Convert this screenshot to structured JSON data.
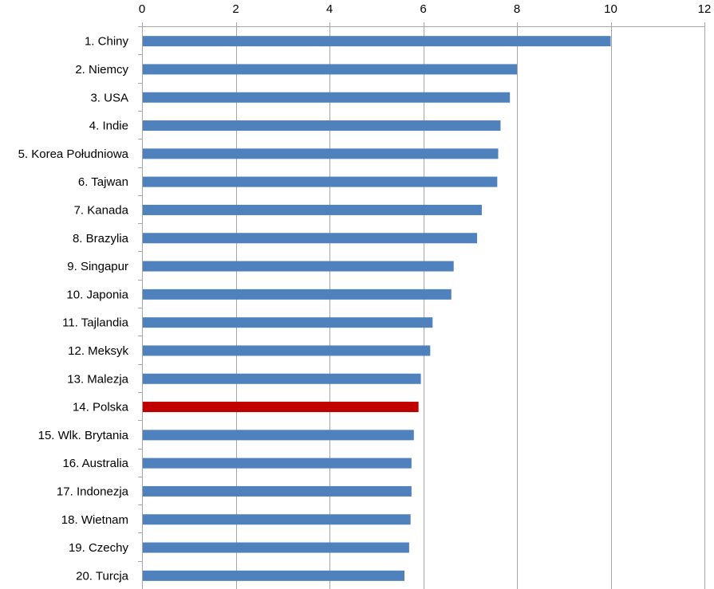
{
  "chart_data": {
    "type": "bar",
    "orientation": "horizontal",
    "categories": [
      "1. Chiny",
      "2. Niemcy",
      "3. USA",
      "4. Indie",
      "5. Korea Południowa",
      "6. Tajwan",
      "7. Kanada",
      "8. Brazylia",
      "9. Singapur",
      "10. Japonia",
      "11. Tajlandia",
      "12. Meksyk",
      "13. Malezja",
      "14. Polska",
      "15. Wlk. Brytania",
      "16. Australia",
      "17. Indonezja",
      "18. Wietnam",
      "19. Czechy",
      "20. Turcja"
    ],
    "values": [
      10.0,
      8.0,
      7.85,
      7.65,
      7.6,
      7.58,
      7.25,
      7.15,
      6.65,
      6.6,
      6.2,
      6.15,
      5.95,
      5.9,
      5.8,
      5.75,
      5.75,
      5.73,
      5.7,
      5.6
    ],
    "highlight_index": 13,
    "colors": {
      "default": "#4F81BD",
      "highlight": "#C00000",
      "axis": "#A6A6A6"
    },
    "xlim": [
      0,
      12
    ],
    "xticks": [
      "0",
      "2",
      "4",
      "6",
      "8",
      "10",
      "12"
    ],
    "x_axis_position": "top",
    "grid": true,
    "legend": "none",
    "title": "",
    "xlabel": "",
    "ylabel": ""
  }
}
